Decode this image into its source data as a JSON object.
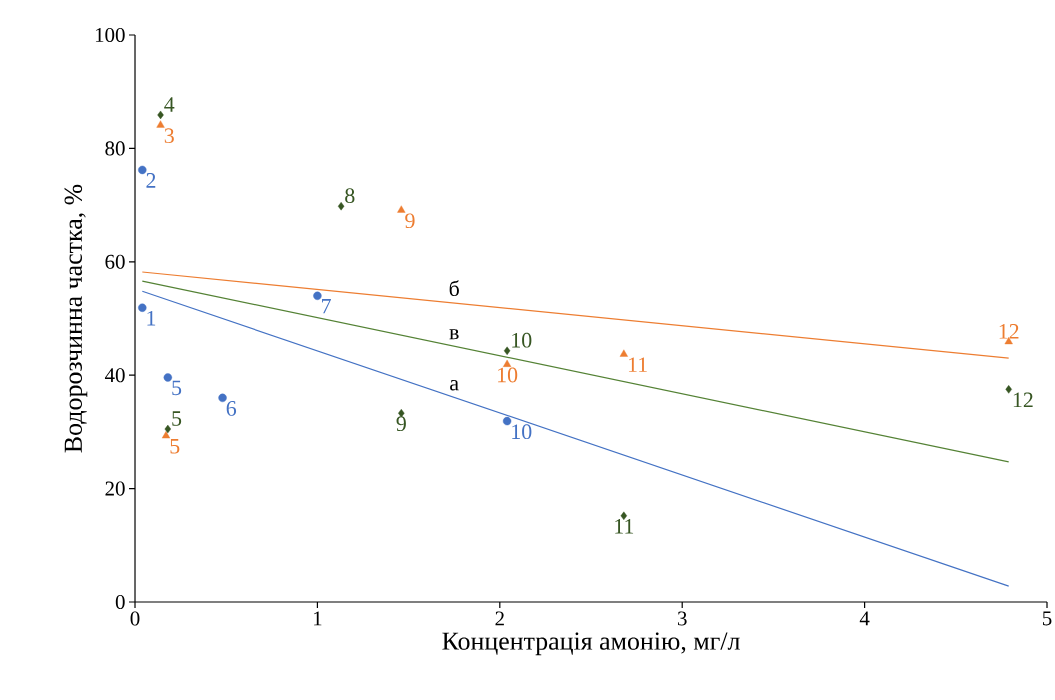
{
  "chart_data": {
    "type": "scatter",
    "xlabel": "Концентрація амонію, мг/л",
    "ylabel": "Водорозчинна частка, %",
    "xlim": [
      0,
      5
    ],
    "xticks": [
      0,
      1,
      2,
      3,
      4,
      5
    ],
    "ylim": [
      0,
      100
    ],
    "yticks": [
      0,
      20,
      40,
      60,
      80,
      100
    ],
    "series": [
      {
        "marker": "circle",
        "color": "#4472c4",
        "x": [
          0.04,
          0.04,
          0.18,
          0.48,
          1.0,
          2.04
        ],
        "values": [
          51.9,
          76.2,
          39.6,
          36.0,
          54.0,
          31.9
        ]
      },
      {
        "marker": "triangle",
        "color": "#ed7d31",
        "x": [
          0.14,
          0.17,
          1.46,
          2.04,
          2.68,
          4.79
        ],
        "values": [
          84.1,
          29.3,
          69.1,
          41.9,
          43.7,
          45.9
        ]
      },
      {
        "marker": "diamond",
        "color": "#375623",
        "x": [
          0.14,
          0.18,
          1.13,
          1.46,
          2.04,
          2.68,
          4.79
        ],
        "values": [
          85.9,
          30.5,
          69.8,
          33.3,
          44.3,
          15.2,
          37.5
        ]
      },
      {
        "type": "line",
        "name": "а",
        "color": "#4472c4",
        "marker": "none",
        "line_style": "solid",
        "x": [
          0.04,
          4.79
        ],
        "values": [
          54.8,
          2.8
        ]
      },
      {
        "type": "line",
        "name": "б",
        "color": "#ed7d31",
        "marker": "none",
        "line_style": "solid",
        "x": [
          0.04,
          4.79
        ],
        "values": [
          58.2,
          43.0
        ]
      },
      {
        "type": "line",
        "name": "в",
        "color": "#548235",
        "marker": "none",
        "line_style": "solid",
        "x": [
          0.04,
          4.79
        ],
        "values": [
          56.6,
          24.7
        ]
      }
    ],
    "annotations": [
      {
        "text": "1",
        "x": 0.04,
        "y": 51.9
      },
      {
        "text": "2",
        "x": 0.04,
        "y": 76.2
      },
      {
        "text": "5",
        "x": 0.18,
        "y": 39.6
      },
      {
        "text": "6",
        "x": 0.48,
        "y": 36.0
      },
      {
        "text": "7",
        "x": 1.0,
        "y": 54.0
      },
      {
        "text": "10",
        "x": 2.04,
        "y": 31.9
      },
      {
        "text": "3",
        "x": 0.14,
        "y": 84.1
      },
      {
        "text": "5",
        "x": 0.17,
        "y": 29.3
      },
      {
        "text": "9",
        "x": 1.46,
        "y": 69.1
      },
      {
        "text": "10",
        "x": 2.04,
        "y": 41.9
      },
      {
        "text": "11",
        "x": 2.68,
        "y": 43.7
      },
      {
        "text": "12",
        "x": 4.79,
        "y": 45.9
      },
      {
        "text": "4",
        "x": 0.14,
        "y": 85.9
      },
      {
        "text": "5",
        "x": 0.18,
        "y": 30.5
      },
      {
        "text": "8",
        "x": 1.13,
        "y": 69.8
      },
      {
        "text": "9",
        "x": 1.46,
        "y": 33.3
      },
      {
        "text": "10",
        "x": 2.04,
        "y": 44.3
      },
      {
        "text": "11",
        "x": 2.68,
        "y": 15.2
      },
      {
        "text": "12",
        "x": 4.79,
        "y": 37.5
      }
    ]
  }
}
